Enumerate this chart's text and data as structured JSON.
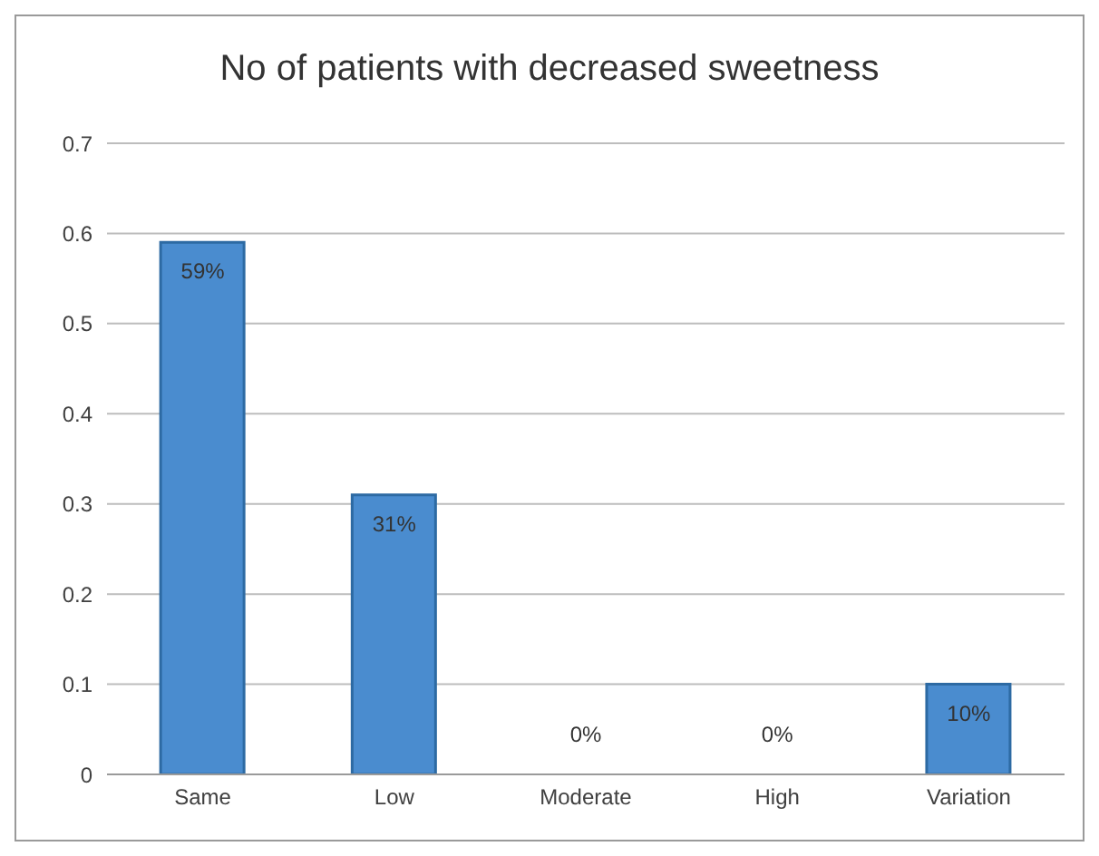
{
  "chart_data": {
    "type": "bar",
    "title": "No of patients with decreased sweetness",
    "categories": [
      "Same",
      "Low",
      "Moderate",
      "High",
      "Variation"
    ],
    "values": [
      0.59,
      0.31,
      0,
      0,
      0.1
    ],
    "value_labels": [
      "59%",
      "31%",
      "0%",
      "0%",
      "10%"
    ],
    "color": "#4a8ccf",
    "ylim": [
      0,
      0.7
    ],
    "yticks": [
      0,
      0.1,
      0.2,
      0.3,
      0.4,
      0.5,
      0.6,
      0.7
    ],
    "grid": "y",
    "legend": false
  }
}
